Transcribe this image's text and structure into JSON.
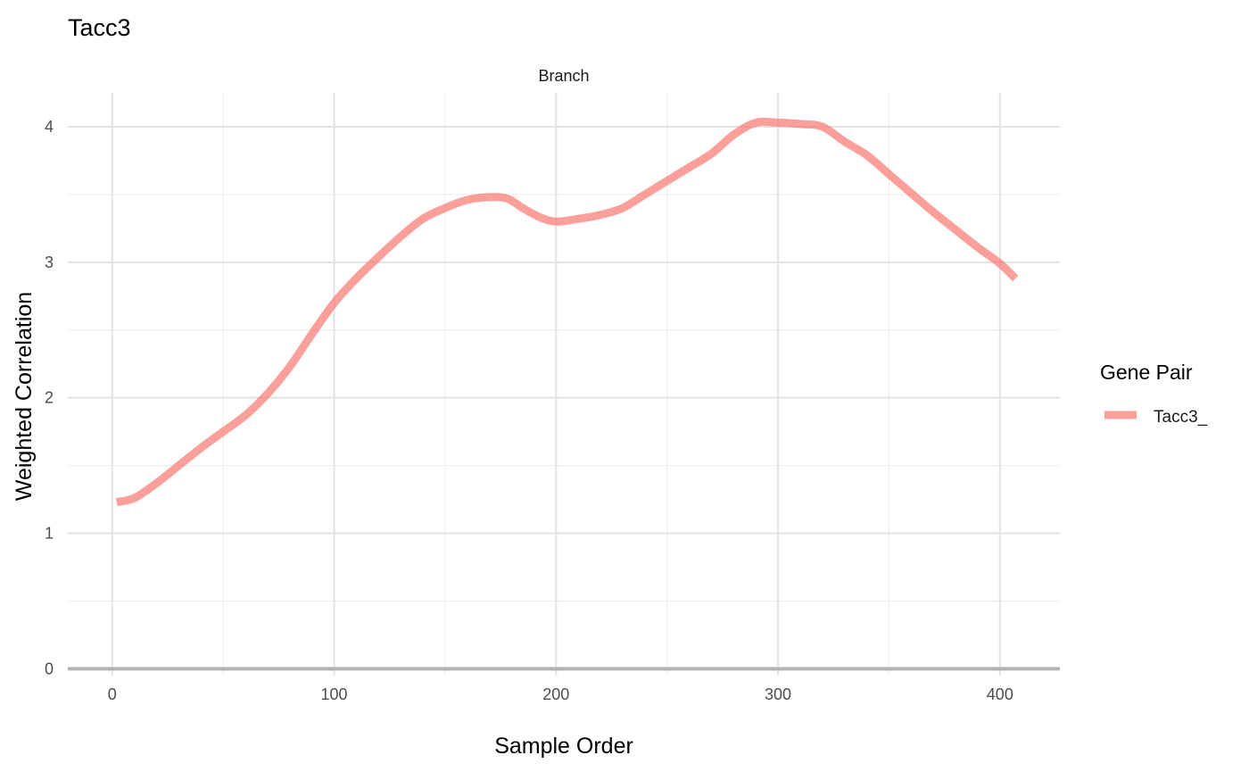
{
  "chart_data": {
    "type": "line",
    "title": "Tacc3",
    "facet_label": "Branch",
    "xlabel": "Sample Order",
    "ylabel": "Weighted Correlation",
    "xlim": [
      -20,
      427
    ],
    "ylim": [
      -0.05,
      4.25
    ],
    "x_ticks": [
      0,
      100,
      200,
      300,
      400
    ],
    "x_tick_labels": [
      "0",
      "100",
      "200",
      "300",
      "400"
    ],
    "y_ticks": [
      0,
      1,
      2,
      3,
      4
    ],
    "y_tick_labels": [
      "0",
      "1",
      "2",
      "3",
      "4"
    ],
    "grid": true,
    "zero_line": true,
    "legend": {
      "title": "Gene Pair",
      "position": "right"
    },
    "series": [
      {
        "name": "Tacc3_",
        "color": "#F8766D",
        "x": [
          2,
          10,
          20,
          30,
          40,
          50,
          60,
          70,
          80,
          90,
          100,
          110,
          120,
          130,
          140,
          150,
          160,
          170,
          178,
          185,
          193,
          200,
          210,
          220,
          230,
          240,
          250,
          260,
          270,
          280,
          290,
          300,
          310,
          320,
          330,
          340,
          350,
          360,
          370,
          380,
          390,
          400,
          407
        ],
        "y": [
          1.23,
          1.26,
          1.37,
          1.5,
          1.63,
          1.75,
          1.87,
          2.03,
          2.23,
          2.47,
          2.7,
          2.88,
          3.04,
          3.19,
          3.32,
          3.4,
          3.46,
          3.48,
          3.47,
          3.4,
          3.33,
          3.3,
          3.32,
          3.35,
          3.4,
          3.5,
          3.6,
          3.7,
          3.8,
          3.94,
          4.03,
          4.03,
          4.02,
          4.0,
          3.89,
          3.79,
          3.65,
          3.51,
          3.37,
          3.24,
          3.11,
          2.99,
          2.88
        ]
      }
    ]
  }
}
